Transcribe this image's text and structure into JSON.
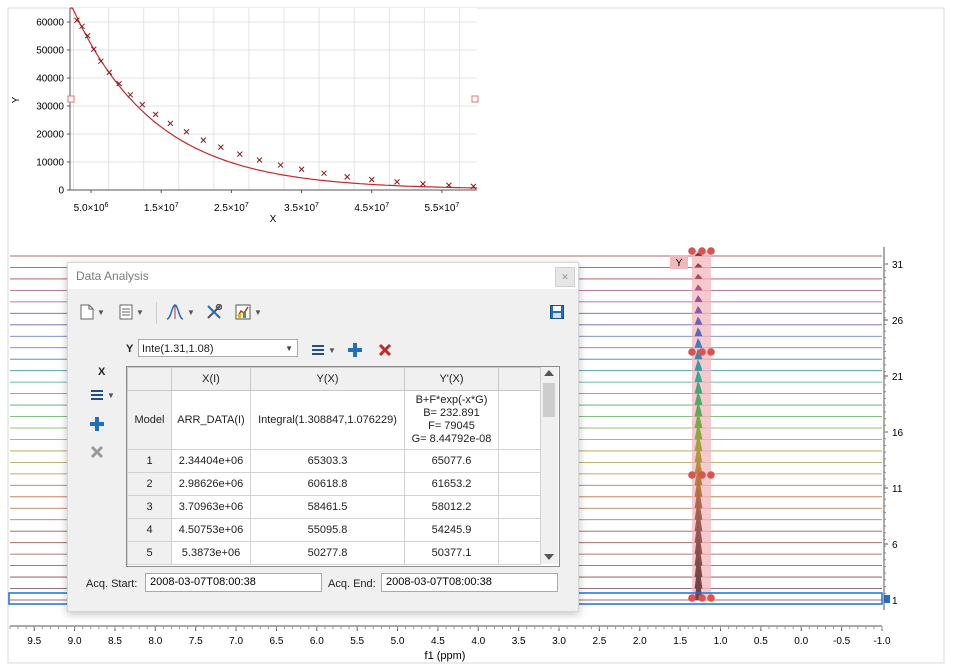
{
  "top_chart": {
    "type": "scatter",
    "xlabel": "X",
    "ylabel": "Y",
    "xlim": [
      2000000,
      60000000
    ],
    "ylim": [
      0,
      65000
    ],
    "yticks": [
      0,
      10000,
      20000,
      30000,
      40000,
      50000,
      60000
    ],
    "xtick_labels": [
      {
        "value": 5000000,
        "mant": "5.0",
        "exp": "6"
      },
      {
        "value": 15000000,
        "mant": "1.5",
        "exp": "7"
      },
      {
        "value": 25000000,
        "mant": "2.5",
        "exp": "7"
      },
      {
        "value": 35000000,
        "mant": "3.5",
        "exp": "7"
      },
      {
        "value": 45000000,
        "mant": "4.5",
        "exp": "7"
      },
      {
        "value": 55000000,
        "mant": "5.5",
        "exp": "7"
      }
    ],
    "grid": true,
    "model": {
      "B": 232.891,
      "F": 79045,
      "G": 8.44792e-08
    },
    "points": [
      [
        2344040,
        65303
      ],
      [
        2986260,
        60619
      ],
      [
        3709630,
        58462
      ],
      [
        4507530,
        55096
      ],
      [
        5387300,
        50278
      ],
      [
        6400000,
        46000
      ],
      [
        7600000,
        42000
      ],
      [
        9000000,
        38000
      ],
      [
        10600000,
        34000
      ],
      [
        12300000,
        30500
      ],
      [
        14200000,
        27000
      ],
      [
        16300000,
        23800
      ],
      [
        18600000,
        20800
      ],
      [
        21000000,
        17800
      ],
      [
        23500000,
        15300
      ],
      [
        26200000,
        12800
      ],
      [
        29000000,
        10700
      ],
      [
        32000000,
        8900
      ],
      [
        35000000,
        7400
      ],
      [
        38200000,
        6000
      ],
      [
        41500000,
        4700
      ],
      [
        45000000,
        3700
      ],
      [
        48600000,
        2900
      ],
      [
        52300000,
        2200
      ],
      [
        56000000,
        1700
      ],
      [
        59500000,
        1300
      ]
    ]
  },
  "spectrum": {
    "xlabel": "f1 (ppm)",
    "xticks": [
      "9.5",
      "9.0",
      "8.5",
      "8.0",
      "7.5",
      "7.0",
      "6.5",
      "6.0",
      "5.5",
      "5.0",
      "4.5",
      "4.0",
      "3.5",
      "3.0",
      "2.5",
      "2.0",
      "1.5",
      "1.0",
      "0.5",
      "0.0",
      "-0.5",
      "-1.0"
    ],
    "right_ticks": [
      "31",
      "26",
      "21",
      "16",
      "11",
      "6",
      "1"
    ],
    "region_label": "Y",
    "trace_count": 31
  },
  "dialog": {
    "title": "Data Analysis",
    "close_icon": "x-icon",
    "y_label": "Y",
    "y_select_value": "Inte(1.31,1.08)",
    "x_label": "X",
    "columns": [
      "",
      "X(I)",
      "Y(X)",
      "Y'(X)"
    ],
    "model_row": {
      "label": "Model",
      "x": "ARR_DATA(I)",
      "y": "Integral(1.308847,1.076229)",
      "fit": [
        "B+F*exp(-x*G)",
        "B= 232.891",
        "F= 79045",
        "G= 8.44792e-08"
      ]
    },
    "rows": [
      [
        "1",
        "2.34404e+06",
        "65303.3",
        "65077.6"
      ],
      [
        "2",
        "2.98626e+06",
        "60618.8",
        "61653.2"
      ],
      [
        "3",
        "3.70963e+06",
        "58461.5",
        "58012.2"
      ],
      [
        "4",
        "4.50753e+06",
        "55095.8",
        "54245.9"
      ],
      [
        "5",
        "5.3873e+06",
        "50277.8",
        "50377.1"
      ]
    ],
    "acq_start_label": "Acq. Start:",
    "acq_start_value": "2008-03-07T08:00:38",
    "acq_end_label": "Acq. End:",
    "acq_end_value": "2008-03-07T08:00:38"
  },
  "colors": {
    "fit_line": "#c62828",
    "region_fill": "#f2b8bd",
    "handle": "#d9534f",
    "selection": "#1e6fd9",
    "add_icon": "#1f6fbf",
    "delete_icon": "#c62828"
  }
}
